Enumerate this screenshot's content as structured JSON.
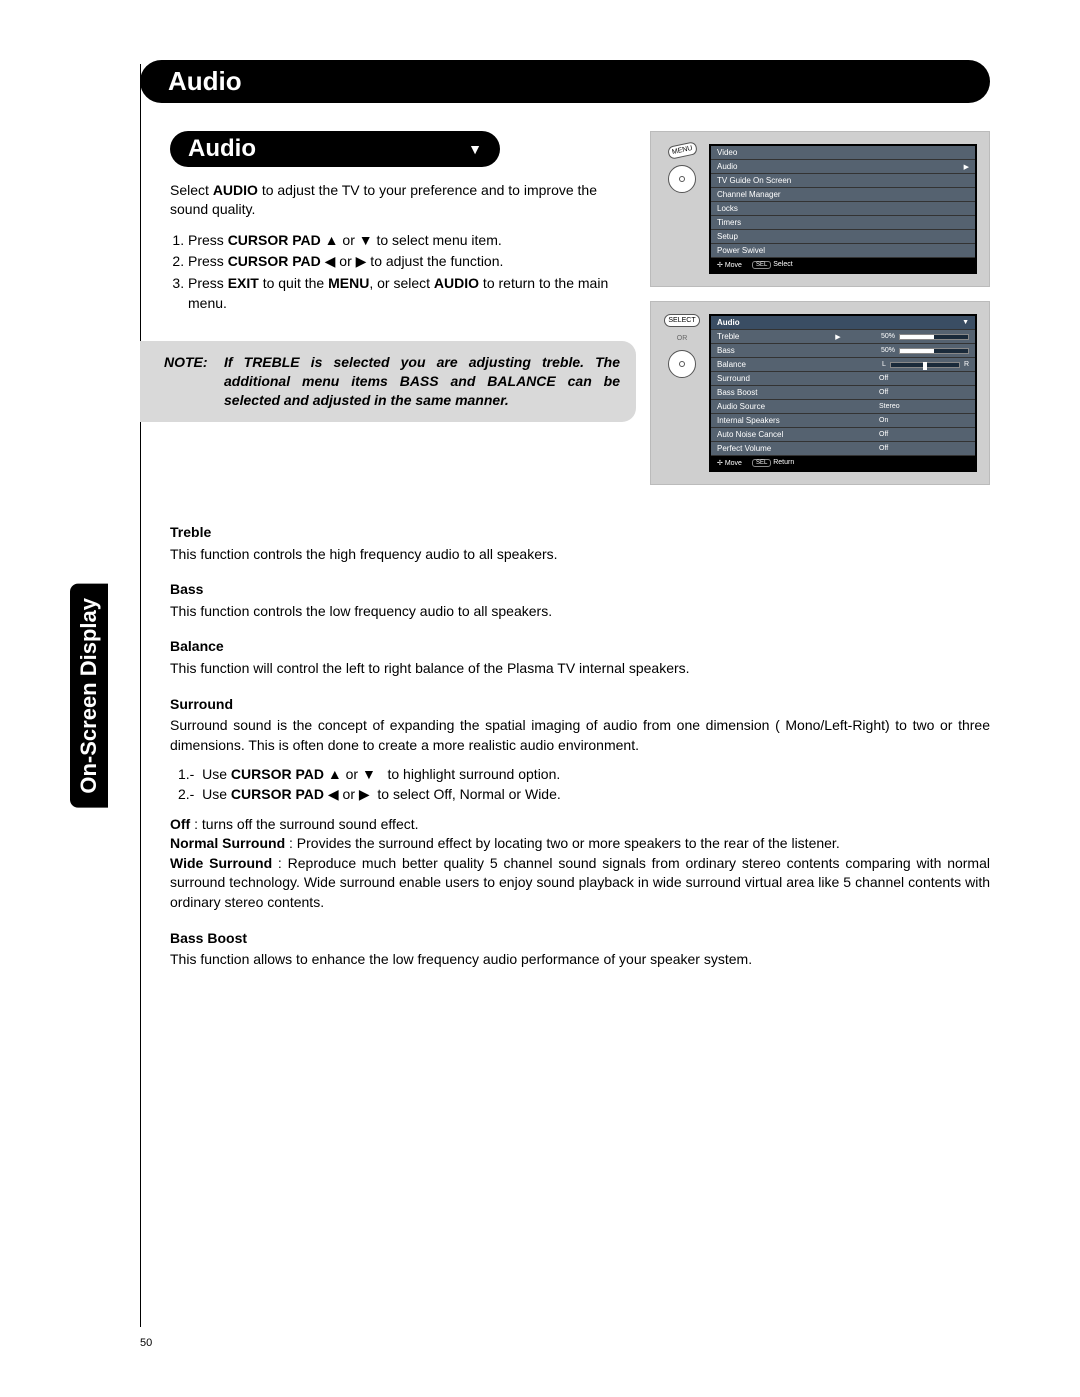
{
  "page_number": "50",
  "sidebar_tab": "On-Screen Display",
  "main_title": "Audio",
  "sub_title": "Audio",
  "intro": "Select AUDIO to adjust the TV to your preference and to improve the sound quality.",
  "steps": [
    "Press CURSOR PAD  ▲ or ▼ to select menu item.",
    "Press CURSOR PAD  ◀ or ▶ to adjust the function.",
    "Press EXIT to quit the MENU, or select AUDIO to return to the main menu."
  ],
  "note": {
    "label": "NOTE:",
    "text": "If TREBLE is selected you are adjusting treble. The additional menu items BASS and BALANCE can be selected and adjusted in the same manner."
  },
  "tv_menu1": {
    "button_label": "MENU",
    "header": "Video",
    "highlight": "Audio",
    "items": [
      "TV Guide On Screen",
      "Channel Manager",
      "Locks",
      "Timers",
      "Setup",
      "Power Swivel"
    ],
    "footer_move": "Move",
    "footer_sel_key": "SEL",
    "footer_select": "Select"
  },
  "tv_menu2": {
    "button_label": "SELECT",
    "or_label": "OR",
    "header": "Audio",
    "rows": [
      {
        "name": "Treble",
        "value": "50%",
        "slider_pct": 50,
        "highlight": true,
        "type": "slider"
      },
      {
        "name": "Bass",
        "value": "50%",
        "slider_pct": 50,
        "type": "slider"
      },
      {
        "name": "Balance",
        "value": "",
        "type": "balance",
        "left_label": "L",
        "right_label": "R"
      },
      {
        "name": "Surround",
        "value": "Off",
        "type": "text"
      },
      {
        "name": "Bass Boost",
        "value": "Off",
        "type": "text"
      },
      {
        "name": "Audio Source",
        "value": "Stereo",
        "type": "text"
      },
      {
        "name": "Internal Speakers",
        "value": "On",
        "type": "text"
      },
      {
        "name": "Auto Noise Cancel",
        "value": "Off",
        "type": "text"
      },
      {
        "name": "Perfect Volume",
        "value": "Off",
        "type": "text"
      }
    ],
    "footer_move": "Move",
    "footer_sel_key": "SEL",
    "footer_return": "Return"
  },
  "sections": {
    "treble_h": "Treble",
    "treble_p": "This function controls the high frequency audio to all speakers.",
    "bass_h": "Bass",
    "bass_p": "This function controls the low frequency audio to all speakers.",
    "balance_h": "Balance",
    "balance_p": "This function will control the left to right balance of the Plasma TV internal speakers.",
    "surround_h": "Surround",
    "surround_p1": "Surround sound is the concept of expanding the spatial imaging of audio from one dimension ( Mono/Left-Right) to two or three dimensions. This is often done to create a more realistic audio environment.",
    "surround_s1": "1.-  Use CURSOR PAD ▲ or ▼   to highlight surround option.",
    "surround_s2": "2.-  Use CURSOR PAD ◀ or ▶  to select Off, Normal or Wide.",
    "surround_off": "Off : turns off the surround sound effect.",
    "surround_normal": "Normal Surround : Provides the surround effect by locating two or more speakers to the rear of the listener.",
    "surround_wide": "Wide Surround : Reproduce much better quality 5 channel sound signals from ordinary stereo contents comparing with normal surround technology. Wide surround enable users to enjoy sound playback in wide surround virtual area like 5 channel contents with ordinary stereo contents.",
    "bassboost_h": "Bass Boost",
    "bassboost_p": "This function allows to enhance the low frequency audio performance of your speaker system."
  }
}
